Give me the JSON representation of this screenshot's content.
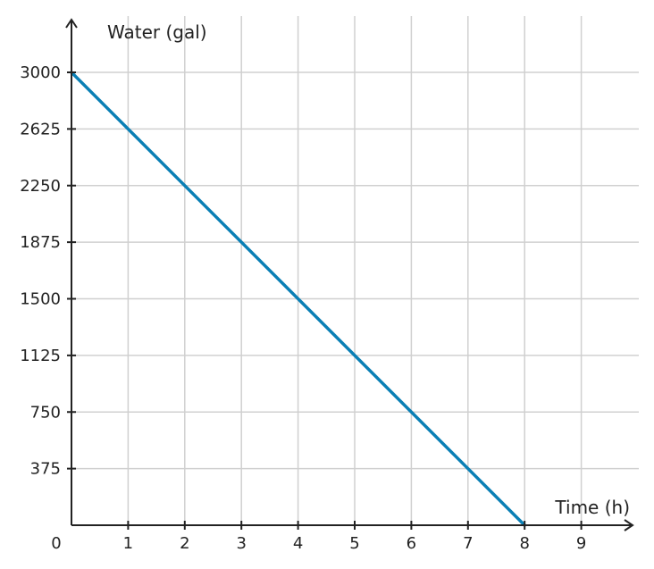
{
  "chart_data": {
    "type": "line",
    "title": "",
    "xlabel": "Time (h)",
    "ylabel": "Water (gal)",
    "xlim": [
      0,
      10
    ],
    "ylim": [
      0,
      3750
    ],
    "x_ticks": [
      1,
      2,
      3,
      4,
      5,
      6,
      7,
      8,
      9
    ],
    "y_ticks": [
      375,
      750,
      1125,
      1500,
      1875,
      2250,
      2625,
      3000
    ],
    "origin_label": "0",
    "grid": true,
    "series": [
      {
        "color": "#0a7fb5",
        "x": [
          0,
          8
        ],
        "y": [
          3000,
          0
        ]
      }
    ]
  }
}
